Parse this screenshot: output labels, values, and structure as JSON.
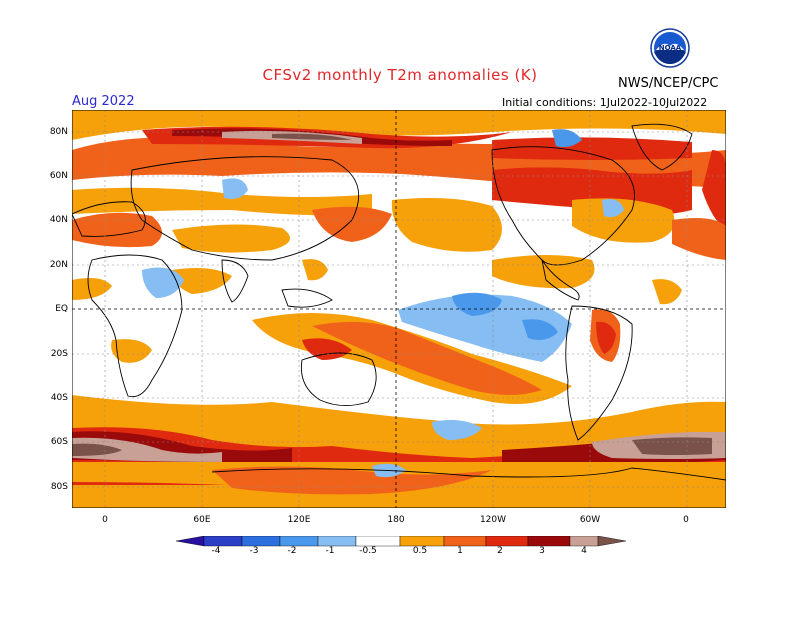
{
  "header": {
    "title": "CFSv2 monthly T2m anomalies (K)",
    "month": "Aug 2022",
    "agency": "NWS/NCEP/CPC",
    "initial_conditions": "Initial conditions: 1Jul2022-10Jul2022",
    "logo_text": "NOAA"
  },
  "axes": {
    "lat_labels": [
      "80N",
      "60N",
      "40N",
      "20N",
      "EQ",
      "20S",
      "40S",
      "60S",
      "80S"
    ],
    "lon_labels": [
      "0",
      "60E",
      "120E",
      "180",
      "120W",
      "60W",
      "0"
    ]
  },
  "colorbar": {
    "labels": [
      "-4",
      "-3",
      "-2",
      "-1",
      "-0.5",
      "0.5",
      "1",
      "2",
      "3",
      "4"
    ],
    "colors": {
      "lt_m4": "#2a10a0",
      "m4_m3": "#2b3fc7",
      "m3_m2": "#2e6fe0",
      "m2_m1": "#4a98ec",
      "m1_m05": "#86bdf2",
      "neutral": "#ffffff",
      "p05_p1": "#f6a00a",
      "p1_p2": "#f0621a",
      "p2_p3": "#e02a0f",
      "p3_p4": "#9a0a0a",
      "p4_p5": "#c8a095",
      "gt_p5": "#7a524a"
    }
  }
}
